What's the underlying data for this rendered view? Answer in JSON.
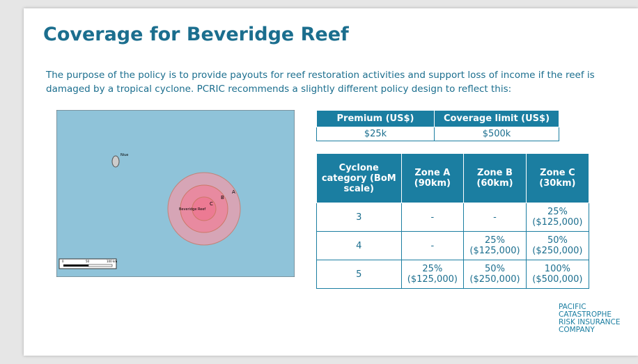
{
  "title": "Coverage for Beveridge Reef",
  "intro": "The purpose of the policy is to provide payouts for reef restoration activities and support loss of income if the reef is damaged by a tropical cyclone. PCRIC recommends a slightly different policy design to reflect this:",
  "map": {
    "labels": [
      "Niue",
      "Beveridge Reef",
      "A",
      "B",
      "C"
    ],
    "scale": [
      "0",
      "50",
      "100 km"
    ]
  },
  "summary_table": {
    "headers": [
      "Premium (US$)",
      "Coverage limit (US$)"
    ],
    "row": [
      "$25k",
      "$500k"
    ]
  },
  "zone_table": {
    "headers": [
      "Cyclone category (BoM scale)",
      "Zone A (90km)",
      "Zone B (60km)",
      "Zone C (30km)"
    ],
    "rows": [
      [
        "3",
        "-",
        "-",
        "25% ($125,000)"
      ],
      [
        "4",
        "-",
        "25% ($125,000)",
        "50% ($250,000)"
      ],
      [
        "5",
        "25% ($125,000)",
        "50% ($250,000)",
        "100% ($500,000)"
      ]
    ]
  },
  "logo": [
    "PACIFIC",
    "CATASTROPHE",
    "RISK INSURANCE",
    "COMPANY"
  ]
}
